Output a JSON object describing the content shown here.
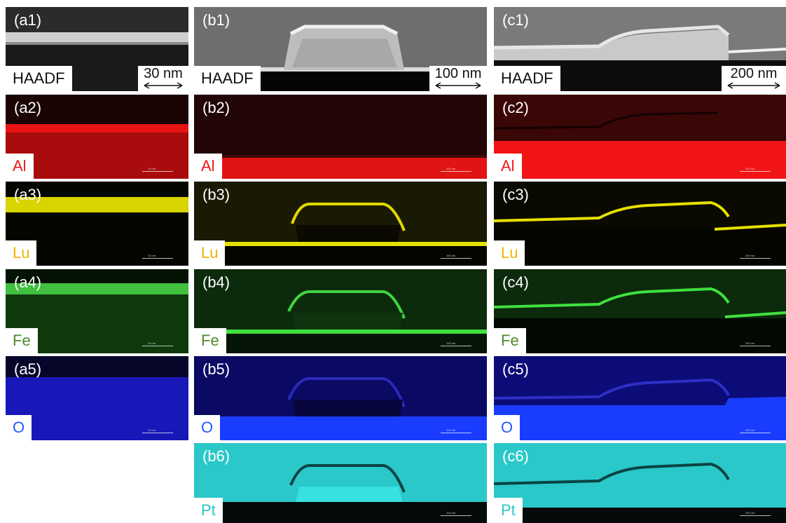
{
  "colors": {
    "Al": "#ff1a1a",
    "Lu": "#f2c400",
    "Fe": "#4e8a2c",
    "O": "#1f5bff",
    "Pt": "#28c7c7",
    "HAADF": "#111111"
  },
  "panels": [
    {
      "id": "a1",
      "label": "(a1)",
      "element": "HAADF",
      "scalebar": "30 nm",
      "row": 1,
      "col": "a"
    },
    {
      "id": "b1",
      "label": "(b1)",
      "element": "HAADF",
      "scalebar": "100 nm",
      "row": 1,
      "col": "b"
    },
    {
      "id": "c1",
      "label": "(c1)",
      "element": "HAADF",
      "scalebar": "200 nm",
      "row": 1,
      "col": "c"
    },
    {
      "id": "a2",
      "label": "(a2)",
      "element": "Al",
      "scalebar_small": "10 nm",
      "row": 2,
      "col": "a"
    },
    {
      "id": "b2",
      "label": "(b2)",
      "element": "Al",
      "scalebar_small": "100 nm",
      "row": 2,
      "col": "b"
    },
    {
      "id": "c2",
      "label": "(c2)",
      "element": "Al",
      "scalebar_small": "200 nm",
      "row": 2,
      "col": "c"
    },
    {
      "id": "a3",
      "label": "(a3)",
      "element": "Lu",
      "scalebar_small": "10 nm",
      "row": 3,
      "col": "a"
    },
    {
      "id": "b3",
      "label": "(b3)",
      "element": "Lu",
      "scalebar_small": "100 nm",
      "row": 3,
      "col": "b"
    },
    {
      "id": "c3",
      "label": "(c3)",
      "element": "Lu",
      "scalebar_small": "200 nm",
      "row": 3,
      "col": "c"
    },
    {
      "id": "a4",
      "label": "(a4)",
      "element": "Fe",
      "scalebar_small": "10 nm",
      "row": 4,
      "col": "a"
    },
    {
      "id": "b4",
      "label": "(b4)",
      "element": "Fe",
      "scalebar_small": "100 nm",
      "row": 4,
      "col": "b"
    },
    {
      "id": "c4",
      "label": "(c4)",
      "element": "Fe",
      "scalebar_small": "200 nm",
      "row": 4,
      "col": "c"
    },
    {
      "id": "a5",
      "label": "(a5)",
      "element": "O",
      "scalebar_small": "10 nm",
      "row": 5,
      "col": "a"
    },
    {
      "id": "b5",
      "label": "(b5)",
      "element": "O",
      "scalebar_small": "100 nm",
      "row": 5,
      "col": "b"
    },
    {
      "id": "c5",
      "label": "(c5)",
      "element": "O",
      "scalebar_small": "200 nm",
      "row": 5,
      "col": "c"
    },
    {
      "id": "b6",
      "label": "(b6)",
      "element": "Pt",
      "scalebar_small": "100 nm",
      "row": 6,
      "col": "b"
    },
    {
      "id": "c6",
      "label": "(c6)",
      "element": "Pt",
      "scalebar_small": "200 nm",
      "row": 6,
      "col": "c"
    }
  ]
}
